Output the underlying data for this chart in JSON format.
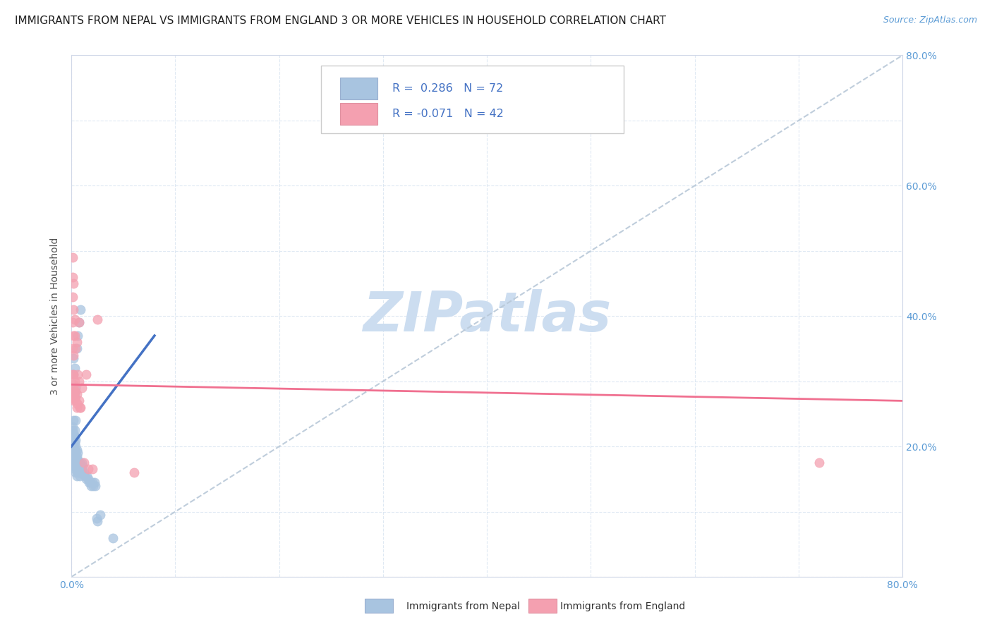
{
  "title": "IMMIGRANTS FROM NEPAL VS IMMIGRANTS FROM ENGLAND 3 OR MORE VEHICLES IN HOUSEHOLD CORRELATION CHART",
  "source": "Source: ZipAtlas.com",
  "ylabel": "3 or more Vehicles in Household",
  "xlim": [
    0.0,
    0.8
  ],
  "ylim": [
    0.0,
    0.8
  ],
  "xticks": [
    0.0,
    0.1,
    0.2,
    0.3,
    0.4,
    0.5,
    0.6,
    0.7,
    0.8
  ],
  "yticks": [
    0.0,
    0.1,
    0.2,
    0.3,
    0.4,
    0.5,
    0.6,
    0.7,
    0.8
  ],
  "legend_label_nepal": "Immigrants from Nepal",
  "legend_label_england": "Immigrants from England",
  "R_nepal": "0.286",
  "N_nepal": "72",
  "R_england": "-0.071",
  "N_england": "42",
  "nepal_color": "#a8c4e0",
  "england_color": "#f4a0b0",
  "nepal_line_color": "#4472c4",
  "england_line_color": "#f07090",
  "diagonal_color": "#b8c8d8",
  "watermark_color": "#ccddf0",
  "background_color": "#ffffff",
  "nepal_scatter": [
    [
      0.001,
      0.175
    ],
    [
      0.001,
      0.185
    ],
    [
      0.001,
      0.2
    ],
    [
      0.001,
      0.215
    ],
    [
      0.001,
      0.225
    ],
    [
      0.001,
      0.23
    ],
    [
      0.002,
      0.17
    ],
    [
      0.002,
      0.18
    ],
    [
      0.002,
      0.19
    ],
    [
      0.002,
      0.2
    ],
    [
      0.002,
      0.21
    ],
    [
      0.002,
      0.22
    ],
    [
      0.002,
      0.24
    ],
    [
      0.002,
      0.31
    ],
    [
      0.002,
      0.335
    ],
    [
      0.003,
      0.165
    ],
    [
      0.003,
      0.175
    ],
    [
      0.003,
      0.185
    ],
    [
      0.003,
      0.195
    ],
    [
      0.003,
      0.205
    ],
    [
      0.003,
      0.215
    ],
    [
      0.003,
      0.225
    ],
    [
      0.003,
      0.28
    ],
    [
      0.003,
      0.32
    ],
    [
      0.004,
      0.16
    ],
    [
      0.004,
      0.17
    ],
    [
      0.004,
      0.18
    ],
    [
      0.004,
      0.19
    ],
    [
      0.004,
      0.2
    ],
    [
      0.004,
      0.21
    ],
    [
      0.004,
      0.24
    ],
    [
      0.004,
      0.29
    ],
    [
      0.005,
      0.155
    ],
    [
      0.005,
      0.165
    ],
    [
      0.005,
      0.175
    ],
    [
      0.005,
      0.185
    ],
    [
      0.005,
      0.195
    ],
    [
      0.005,
      0.35
    ],
    [
      0.006,
      0.16
    ],
    [
      0.006,
      0.17
    ],
    [
      0.006,
      0.18
    ],
    [
      0.006,
      0.19
    ],
    [
      0.006,
      0.37
    ],
    [
      0.007,
      0.16
    ],
    [
      0.007,
      0.17
    ],
    [
      0.007,
      0.39
    ],
    [
      0.008,
      0.155
    ],
    [
      0.008,
      0.165
    ],
    [
      0.008,
      0.175
    ],
    [
      0.009,
      0.16
    ],
    [
      0.009,
      0.17
    ],
    [
      0.009,
      0.41
    ],
    [
      0.01,
      0.165
    ],
    [
      0.01,
      0.175
    ],
    [
      0.011,
      0.16
    ],
    [
      0.011,
      0.17
    ],
    [
      0.012,
      0.16
    ],
    [
      0.013,
      0.155
    ],
    [
      0.014,
      0.15
    ],
    [
      0.015,
      0.155
    ],
    [
      0.016,
      0.15
    ],
    [
      0.017,
      0.145
    ],
    [
      0.018,
      0.145
    ],
    [
      0.019,
      0.14
    ],
    [
      0.02,
      0.145
    ],
    [
      0.021,
      0.14
    ],
    [
      0.022,
      0.145
    ],
    [
      0.023,
      0.14
    ],
    [
      0.024,
      0.09
    ],
    [
      0.025,
      0.085
    ],
    [
      0.028,
      0.095
    ],
    [
      0.04,
      0.06
    ]
  ],
  "england_scatter": [
    [
      0.001,
      0.275
    ],
    [
      0.001,
      0.29
    ],
    [
      0.001,
      0.31
    ],
    [
      0.001,
      0.35
    ],
    [
      0.001,
      0.39
    ],
    [
      0.001,
      0.43
    ],
    [
      0.001,
      0.46
    ],
    [
      0.001,
      0.49
    ],
    [
      0.002,
      0.27
    ],
    [
      0.002,
      0.28
    ],
    [
      0.002,
      0.295
    ],
    [
      0.002,
      0.31
    ],
    [
      0.002,
      0.34
    ],
    [
      0.002,
      0.37
    ],
    [
      0.002,
      0.41
    ],
    [
      0.002,
      0.45
    ],
    [
      0.003,
      0.275
    ],
    [
      0.003,
      0.285
    ],
    [
      0.003,
      0.3
    ],
    [
      0.003,
      0.37
    ],
    [
      0.003,
      0.395
    ],
    [
      0.004,
      0.27
    ],
    [
      0.004,
      0.285
    ],
    [
      0.004,
      0.35
    ],
    [
      0.005,
      0.26
    ],
    [
      0.005,
      0.28
    ],
    [
      0.005,
      0.36
    ],
    [
      0.006,
      0.265
    ],
    [
      0.006,
      0.31
    ],
    [
      0.007,
      0.27
    ],
    [
      0.007,
      0.3
    ],
    [
      0.007,
      0.39
    ],
    [
      0.008,
      0.26
    ],
    [
      0.009,
      0.26
    ],
    [
      0.01,
      0.29
    ],
    [
      0.012,
      0.175
    ],
    [
      0.014,
      0.31
    ],
    [
      0.016,
      0.165
    ],
    [
      0.02,
      0.165
    ],
    [
      0.025,
      0.395
    ],
    [
      0.06,
      0.16
    ],
    [
      0.72,
      0.175
    ]
  ],
  "nepal_line": [
    [
      0.0,
      0.2
    ],
    [
      0.08,
      0.37
    ]
  ],
  "england_line": [
    [
      0.0,
      0.295
    ],
    [
      0.8,
      0.27
    ]
  ],
  "title_fontsize": 11,
  "axis_label_fontsize": 10,
  "tick_fontsize": 10,
  "legend_fontsize": 11
}
